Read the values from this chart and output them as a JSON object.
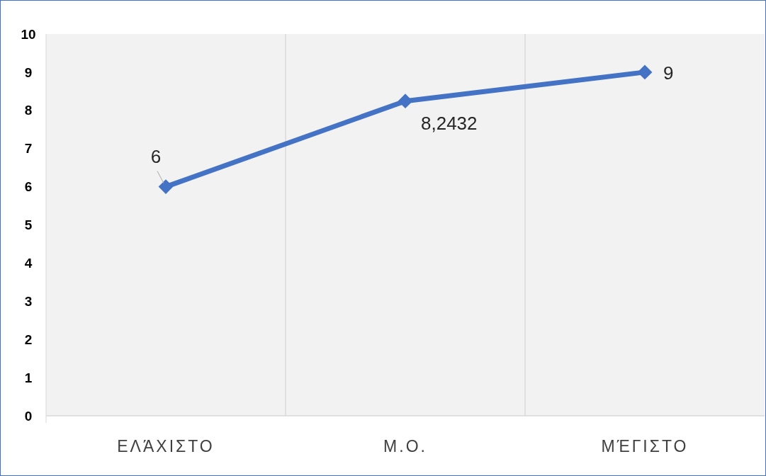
{
  "chart_data": {
    "type": "line",
    "categories": [
      "ΕΛΆΧΙΣΤΟ",
      "Μ.Ο.",
      "ΜΈΓΙΣΤΟ"
    ],
    "series": [
      {
        "color": "#4472c4",
        "values": [
          6,
          8.2432,
          9
        ],
        "value_labels": [
          "6",
          "8,2432",
          "9"
        ]
      }
    ],
    "ylim": [
      0,
      10
    ],
    "yticks": [
      0,
      1,
      2,
      3,
      4,
      5,
      6,
      7,
      8,
      9,
      10
    ],
    "grid": "x",
    "marker": "diamond",
    "line_style": "solid"
  }
}
